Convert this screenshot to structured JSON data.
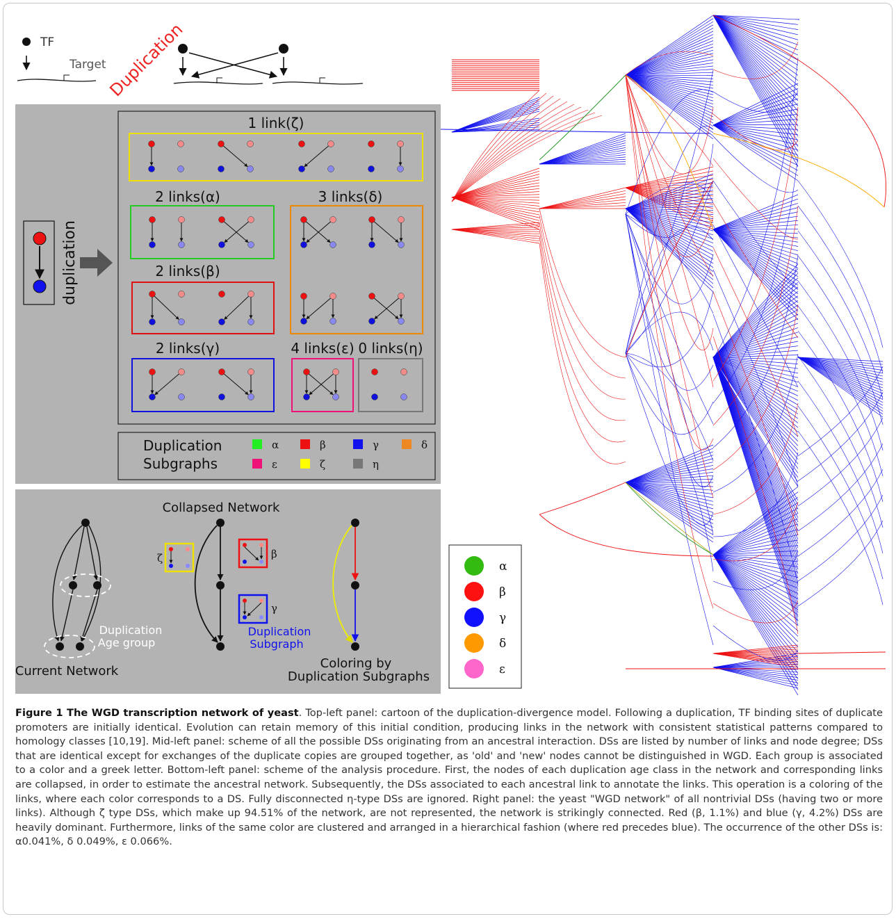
{
  "cartoon": {
    "tf_label": "TF",
    "target_label": "Target",
    "duplication_label": "Duplication"
  },
  "scheme": {
    "side_label": "duplication",
    "groups": [
      {
        "id": "zeta",
        "label": "1 link(ζ)",
        "color": "#f0e000"
      },
      {
        "id": "alpha",
        "label": "2 links(α)",
        "color": "#22cc22"
      },
      {
        "id": "delta",
        "label": "3 links(δ)",
        "color": "#ee8800"
      },
      {
        "id": "beta",
        "label": "2 links(β)",
        "color": "#dd1111"
      },
      {
        "id": "gamma",
        "label": "2 links(γ)",
        "color": "#1111dd"
      },
      {
        "id": "epsilon",
        "label": "4 links(ε)",
        "color": "#ee1177"
      },
      {
        "id": "eta",
        "label": "0 links(η)",
        "color": "#777777"
      }
    ],
    "legend": {
      "line1": "Duplication",
      "line2": "Subgraphs",
      "items": [
        {
          "symbol": "α",
          "color": "#22ee22"
        },
        {
          "symbol": "β",
          "color": "#ee1111"
        },
        {
          "symbol": "γ",
          "color": "#1111ee"
        },
        {
          "symbol": "δ",
          "color": "#ee8822"
        },
        {
          "symbol": "ε",
          "color": "#ee1177"
        },
        {
          "symbol": "ζ",
          "color": "#ffff00"
        },
        {
          "symbol": "η",
          "color": "#777777"
        }
      ]
    }
  },
  "procedure": {
    "collapsed_title": "Collapsed Network",
    "current_network": "Current Network",
    "age_group_line1": "Duplication",
    "age_group_line2": "Age group",
    "subgraph_line1": "Duplication",
    "subgraph_line2": "Subgraph",
    "coloring_line1": "Coloring by",
    "coloring_line2": "Duplication Subgraphs",
    "zeta_symbol": "ζ",
    "beta_symbol": "β",
    "gamma_symbol": "γ"
  },
  "network_legend": [
    {
      "symbol": "α",
      "color": "#33bb11"
    },
    {
      "symbol": "β",
      "color": "#ff1111"
    },
    {
      "symbol": "γ",
      "color": "#1111ff"
    },
    {
      "symbol": "δ",
      "color": "#ff9900"
    },
    {
      "symbol": "ε",
      "color": "#ff66cc"
    }
  ],
  "colors": {
    "panel_grey": "#b3b3b3",
    "red_link": "#ee1111",
    "blue_link": "#1111ee",
    "green_link": "#229922",
    "orange_link": "#ffaa00"
  },
  "caption": {
    "title": "Figure 1 The WGD transcription network of yeast",
    "text": ". Top-left panel: cartoon of the duplication-divergence model. Following a duplication, TF binding sites of duplicate promoters are initially identical. Evolution can retain memory of this initial condition, producing links in the network with consistent statistical patterns compared to homology classes [10,19]. Mid-left panel: scheme of all the possible DSs originating from an ancestral interaction. DSs are listed by number of links and node degree; DSs that are identical except for exchanges of the duplicate copies are grouped together, as 'old' and 'new' nodes cannot be distinguished in WGD. Each group is associated to a color and a greek letter. Bottom-left panel: scheme of the analysis procedure. First, the nodes of each duplication age class in the network and corresponding links are collapsed, in order to estimate the ancestral network. Subsequently, the DSs associated to each ancestral link to annotate the links. This operation is a coloring of the links, where each color corresponds to a DS. Fully disconnected η-type DSs are ignored. Right panel: the yeast \"WGD network\" of all nontrivial DSs (having two or more links). Although ζ type DSs, which make up 94.51% of the network, are not represented, the network is strikingly connected. Red (β, 1.1%) and blue (γ, 4.2%) DSs are heavily dominant. Furthermore, links of the same color are clustered and arranged in a hierarchical fashion (where red precedes blue). The occurrence of the other DSs is: α0.041%, δ 0.049%, ε 0.066%."
  }
}
